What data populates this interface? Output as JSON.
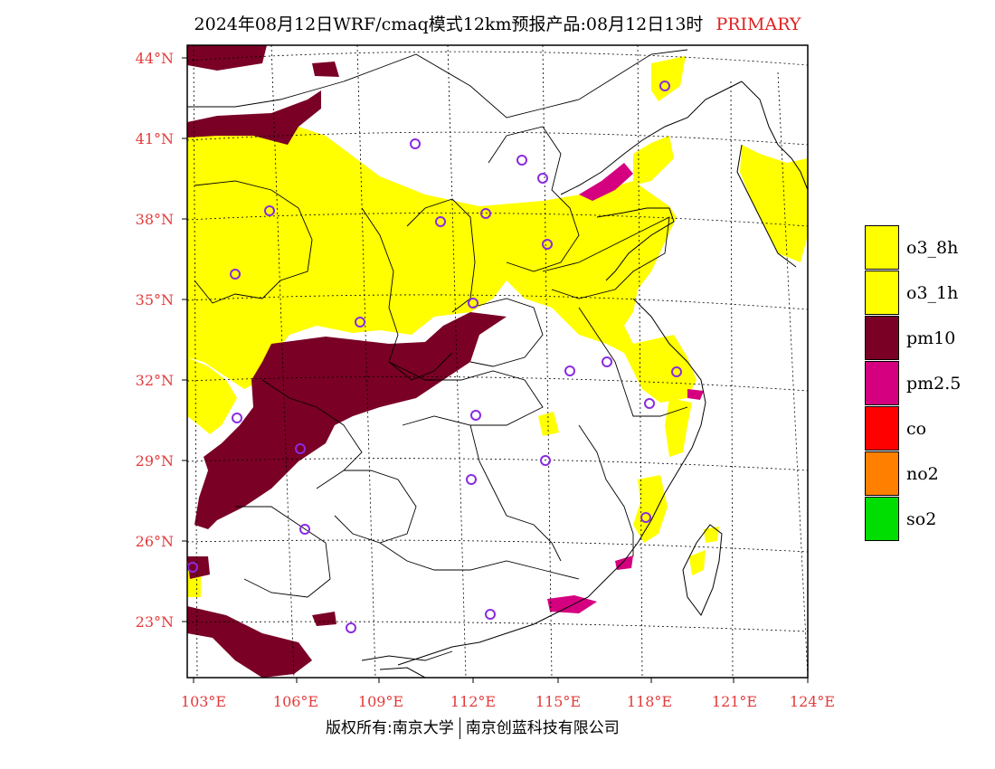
{
  "title": {
    "main": "2024年08月12日WRF/cmaq模式12km预报产品:08月12日13时",
    "tag": "PRIMARY"
  },
  "axes": {
    "lat_ticks": [
      "44°N",
      "41°N",
      "38°N",
      "35°N",
      "32°N",
      "29°N",
      "26°N",
      "23°N"
    ],
    "lon_ticks": [
      "103°E",
      "106°E",
      "109°E",
      "112°E",
      "115°E",
      "118°E",
      "121°E",
      "124°E"
    ],
    "lat_range": [
      21.8,
      44.6
    ],
    "lon_range": [
      102.7,
      124.0
    ]
  },
  "legend": [
    {
      "label": "o3_8h",
      "color": "#ffff00"
    },
    {
      "label": "o3_1h",
      "color": "#ffff00"
    },
    {
      "label": "pm10",
      "color": "#7a0026"
    },
    {
      "label": "pm2.5",
      "color": "#d4007f"
    },
    {
      "label": "co",
      "color": "#ff0000"
    },
    {
      "label": "no2",
      "color": "#ff8000"
    },
    {
      "label": "so2",
      "color": "#00dd00"
    }
  ],
  "colors": {
    "o3": "#ffff00",
    "pm10": "#7a0026",
    "pm25": "#d4007f",
    "station": "#8a2be2",
    "tick": "#e23a3a"
  },
  "footer": {
    "left": "版权所有:南京大学",
    "right": "南京创蓝科技有限公司"
  }
}
